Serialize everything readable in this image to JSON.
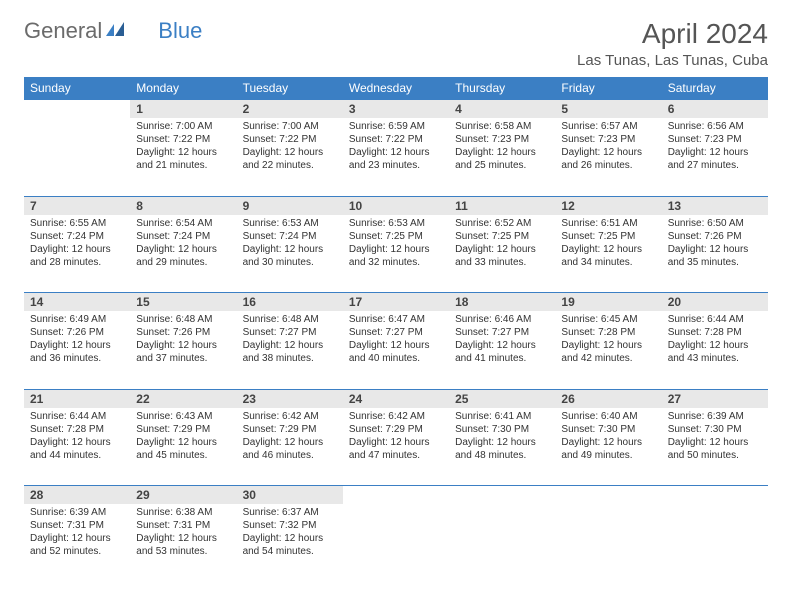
{
  "brand": {
    "part1": "General",
    "part2": "Blue"
  },
  "title": "April 2024",
  "location": "Las Tunas, Las Tunas, Cuba",
  "colors": {
    "header_bg": "#3b7fc4",
    "header_text": "#ffffff",
    "daynum_bg": "#e8e8e8",
    "row_border": "#3b7fc4",
    "body_text": "#333333",
    "title_text": "#555555",
    "logo_gray": "#6b6b6b",
    "logo_blue": "#3b7fc4",
    "page_bg": "#ffffff"
  },
  "fonts": {
    "title_size_pt": 21,
    "location_size_pt": 11,
    "header_size_pt": 9,
    "daynum_size_pt": 9,
    "cell_size_pt": 7.5
  },
  "day_headers": [
    "Sunday",
    "Monday",
    "Tuesday",
    "Wednesday",
    "Thursday",
    "Friday",
    "Saturday"
  ],
  "weeks": [
    [
      {
        "n": "",
        "sr": "",
        "ss": "",
        "dl": ""
      },
      {
        "n": "1",
        "sr": "Sunrise: 7:00 AM",
        "ss": "Sunset: 7:22 PM",
        "dl": "Daylight: 12 hours and 21 minutes."
      },
      {
        "n": "2",
        "sr": "Sunrise: 7:00 AM",
        "ss": "Sunset: 7:22 PM",
        "dl": "Daylight: 12 hours and 22 minutes."
      },
      {
        "n": "3",
        "sr": "Sunrise: 6:59 AM",
        "ss": "Sunset: 7:22 PM",
        "dl": "Daylight: 12 hours and 23 minutes."
      },
      {
        "n": "4",
        "sr": "Sunrise: 6:58 AM",
        "ss": "Sunset: 7:23 PM",
        "dl": "Daylight: 12 hours and 25 minutes."
      },
      {
        "n": "5",
        "sr": "Sunrise: 6:57 AM",
        "ss": "Sunset: 7:23 PM",
        "dl": "Daylight: 12 hours and 26 minutes."
      },
      {
        "n": "6",
        "sr": "Sunrise: 6:56 AM",
        "ss": "Sunset: 7:23 PM",
        "dl": "Daylight: 12 hours and 27 minutes."
      }
    ],
    [
      {
        "n": "7",
        "sr": "Sunrise: 6:55 AM",
        "ss": "Sunset: 7:24 PM",
        "dl": "Daylight: 12 hours and 28 minutes."
      },
      {
        "n": "8",
        "sr": "Sunrise: 6:54 AM",
        "ss": "Sunset: 7:24 PM",
        "dl": "Daylight: 12 hours and 29 minutes."
      },
      {
        "n": "9",
        "sr": "Sunrise: 6:53 AM",
        "ss": "Sunset: 7:24 PM",
        "dl": "Daylight: 12 hours and 30 minutes."
      },
      {
        "n": "10",
        "sr": "Sunrise: 6:53 AM",
        "ss": "Sunset: 7:25 PM",
        "dl": "Daylight: 12 hours and 32 minutes."
      },
      {
        "n": "11",
        "sr": "Sunrise: 6:52 AM",
        "ss": "Sunset: 7:25 PM",
        "dl": "Daylight: 12 hours and 33 minutes."
      },
      {
        "n": "12",
        "sr": "Sunrise: 6:51 AM",
        "ss": "Sunset: 7:25 PM",
        "dl": "Daylight: 12 hours and 34 minutes."
      },
      {
        "n": "13",
        "sr": "Sunrise: 6:50 AM",
        "ss": "Sunset: 7:26 PM",
        "dl": "Daylight: 12 hours and 35 minutes."
      }
    ],
    [
      {
        "n": "14",
        "sr": "Sunrise: 6:49 AM",
        "ss": "Sunset: 7:26 PM",
        "dl": "Daylight: 12 hours and 36 minutes."
      },
      {
        "n": "15",
        "sr": "Sunrise: 6:48 AM",
        "ss": "Sunset: 7:26 PM",
        "dl": "Daylight: 12 hours and 37 minutes."
      },
      {
        "n": "16",
        "sr": "Sunrise: 6:48 AM",
        "ss": "Sunset: 7:27 PM",
        "dl": "Daylight: 12 hours and 38 minutes."
      },
      {
        "n": "17",
        "sr": "Sunrise: 6:47 AM",
        "ss": "Sunset: 7:27 PM",
        "dl": "Daylight: 12 hours and 40 minutes."
      },
      {
        "n": "18",
        "sr": "Sunrise: 6:46 AM",
        "ss": "Sunset: 7:27 PM",
        "dl": "Daylight: 12 hours and 41 minutes."
      },
      {
        "n": "19",
        "sr": "Sunrise: 6:45 AM",
        "ss": "Sunset: 7:28 PM",
        "dl": "Daylight: 12 hours and 42 minutes."
      },
      {
        "n": "20",
        "sr": "Sunrise: 6:44 AM",
        "ss": "Sunset: 7:28 PM",
        "dl": "Daylight: 12 hours and 43 minutes."
      }
    ],
    [
      {
        "n": "21",
        "sr": "Sunrise: 6:44 AM",
        "ss": "Sunset: 7:28 PM",
        "dl": "Daylight: 12 hours and 44 minutes."
      },
      {
        "n": "22",
        "sr": "Sunrise: 6:43 AM",
        "ss": "Sunset: 7:29 PM",
        "dl": "Daylight: 12 hours and 45 minutes."
      },
      {
        "n": "23",
        "sr": "Sunrise: 6:42 AM",
        "ss": "Sunset: 7:29 PM",
        "dl": "Daylight: 12 hours and 46 minutes."
      },
      {
        "n": "24",
        "sr": "Sunrise: 6:42 AM",
        "ss": "Sunset: 7:29 PM",
        "dl": "Daylight: 12 hours and 47 minutes."
      },
      {
        "n": "25",
        "sr": "Sunrise: 6:41 AM",
        "ss": "Sunset: 7:30 PM",
        "dl": "Daylight: 12 hours and 48 minutes."
      },
      {
        "n": "26",
        "sr": "Sunrise: 6:40 AM",
        "ss": "Sunset: 7:30 PM",
        "dl": "Daylight: 12 hours and 49 minutes."
      },
      {
        "n": "27",
        "sr": "Sunrise: 6:39 AM",
        "ss": "Sunset: 7:30 PM",
        "dl": "Daylight: 12 hours and 50 minutes."
      }
    ],
    [
      {
        "n": "28",
        "sr": "Sunrise: 6:39 AM",
        "ss": "Sunset: 7:31 PM",
        "dl": "Daylight: 12 hours and 52 minutes."
      },
      {
        "n": "29",
        "sr": "Sunrise: 6:38 AM",
        "ss": "Sunset: 7:31 PM",
        "dl": "Daylight: 12 hours and 53 minutes."
      },
      {
        "n": "30",
        "sr": "Sunrise: 6:37 AM",
        "ss": "Sunset: 7:32 PM",
        "dl": "Daylight: 12 hours and 54 minutes."
      },
      {
        "n": "",
        "sr": "",
        "ss": "",
        "dl": ""
      },
      {
        "n": "",
        "sr": "",
        "ss": "",
        "dl": ""
      },
      {
        "n": "",
        "sr": "",
        "ss": "",
        "dl": ""
      },
      {
        "n": "",
        "sr": "",
        "ss": "",
        "dl": ""
      }
    ]
  ]
}
